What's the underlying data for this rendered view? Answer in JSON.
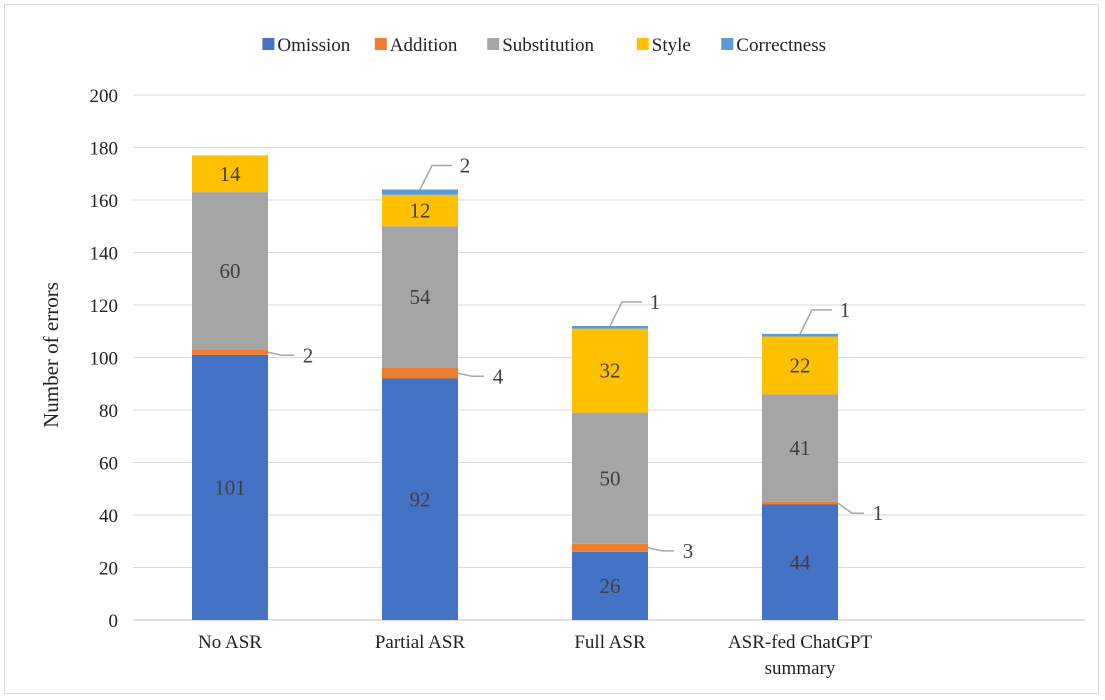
{
  "chart_data": {
    "type": "bar",
    "stacked": true,
    "categories": [
      [
        "No ASR"
      ],
      [
        "Partial ASR"
      ],
      [
        "Full ASR"
      ],
      [
        "ASR-fed ChatGPT",
        "summary"
      ]
    ],
    "series": [
      {
        "name": "Omission",
        "color": "#4472C4",
        "values": [
          101,
          92,
          26,
          44
        ]
      },
      {
        "name": "Addition",
        "color": "#ED7D31",
        "values": [
          2,
          4,
          3,
          1
        ]
      },
      {
        "name": "Substitution",
        "color": "#A5A5A5",
        "values": [
          60,
          54,
          50,
          41
        ]
      },
      {
        "name": "Style",
        "color": "#FFC000",
        "values": [
          14,
          12,
          32,
          22
        ]
      },
      {
        "name": "Correctness",
        "color": "#5B9BD5",
        "values": [
          0,
          2,
          1,
          1
        ]
      }
    ],
    "title": "",
    "xlabel": "",
    "ylabel": "Number of errors",
    "ylim": [
      0,
      200
    ],
    "yticks": [
      0,
      20,
      40,
      60,
      80,
      100,
      120,
      140,
      160,
      180,
      200
    ],
    "grid": true,
    "legend_position": "top"
  }
}
